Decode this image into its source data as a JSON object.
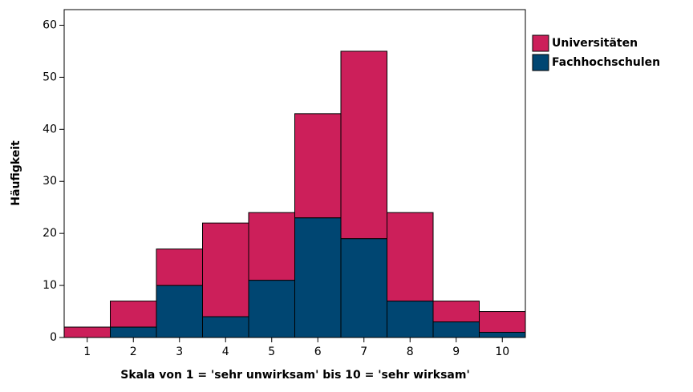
{
  "chart_data": {
    "type": "stacked_bar",
    "x_label": "Skala von 1 = 'sehr unwirksam' bis 10 = 'sehr wirksam'",
    "y_label": "Häufigkeit",
    "categories": [
      "1",
      "2",
      "3",
      "4",
      "5",
      "6",
      "7",
      "8",
      "9",
      "10"
    ],
    "series": [
      {
        "name": "Universitäten",
        "color": "#cc1f5a",
        "values": [
          2,
          5,
          7,
          18,
          13,
          20,
          36,
          17,
          4,
          4
        ]
      },
      {
        "name": "Fachhochschulen",
        "color": "#004672",
        "values": [
          0,
          2,
          10,
          4,
          11,
          23,
          19,
          7,
          3,
          1
        ]
      }
    ],
    "stack_order": "reverse",
    "ylim": [
      0,
      63
    ],
    "yticks": [
      0,
      10,
      20,
      30,
      40,
      50,
      60
    ],
    "legend": "right"
  }
}
